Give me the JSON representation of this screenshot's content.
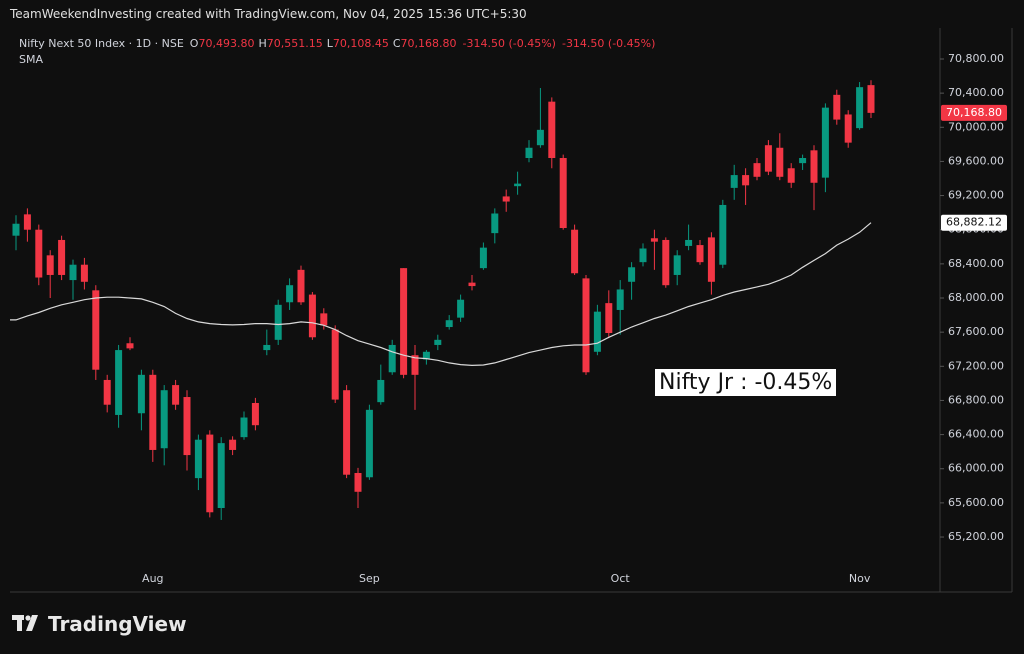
{
  "header": {
    "credit": "TeamWeekendInvesting created with TradingView.com, Nov 04, 2025 15:36 UTC+5:30"
  },
  "footer": {
    "logo": "TradingView"
  },
  "chart_data": {
    "type": "candlestick",
    "symbol": "Nifty Next 50 Index · 1D · NSE",
    "ohlc_legend": [
      {
        "key": "O",
        "value": "70,493.80"
      },
      {
        "key": "H",
        "value": "70,551.15"
      },
      {
        "key": "L",
        "value": "70,108.45"
      },
      {
        "key": "C",
        "value": "70,168.80"
      }
    ],
    "change_labels": [
      "-314.50 (-0.45%)",
      "-314.50 (-0.45%)"
    ],
    "indicator": "SMA",
    "annotation": "Nifty Jr : -0.45%",
    "up_color": "#089981",
    "down_color": "#f23645",
    "sma_color": "#d9d9d9",
    "last_price_label": {
      "value": 70168.8,
      "label": "70,168.80"
    },
    "sma_label": {
      "value": 68882.12,
      "label": "68,882.12"
    },
    "categories": [
      null,
      null,
      null,
      null,
      null,
      null,
      null,
      null,
      null,
      null,
      null,
      null,
      "Aug",
      null,
      null,
      null,
      null,
      null,
      null,
      null,
      null,
      null,
      null,
      null,
      null,
      null,
      null,
      null,
      null,
      null,
      null,
      "Sep",
      null,
      null,
      null,
      null,
      null,
      null,
      null,
      null,
      null,
      null,
      null,
      null,
      null,
      null,
      null,
      null,
      null,
      null,
      null,
      null,
      null,
      "Oct",
      null,
      null,
      null,
      null,
      null,
      null,
      null,
      null,
      null,
      null,
      null,
      null,
      null,
      null,
      null,
      null,
      null,
      null,
      null,
      null,
      "Nov",
      null
    ],
    "open": [
      68730,
      68980,
      68800,
      68500,
      68680,
      68210,
      68390,
      68090,
      67040,
      66630,
      67470,
      66650,
      67100,
      66240,
      66980,
      66840,
      65890,
      66400,
      65540,
      66340,
      66370,
      66770,
      67390,
      67510,
      67950,
      68330,
      68040,
      67820,
      67630,
      66920,
      65950,
      65900,
      66780,
      67130,
      68350,
      67330,
      67280,
      67450,
      67660,
      67770,
      68180,
      68350,
      68760,
      69190,
      69310,
      69640,
      69790,
      70300,
      69640,
      68800,
      68230,
      67370,
      67940,
      67860,
      68190,
      68420,
      68700,
      68680,
      68270,
      68610,
      68620,
      68710,
      68390,
      69290,
      69440,
      69580,
      69790,
      69760,
      69520,
      69580,
      69730,
      69410,
      70380,
      70150,
      69990,
      70493.8
    ],
    "high": [
      68970,
      69050,
      68860,
      68560,
      68730,
      68450,
      68470,
      68150,
      67100,
      67450,
      67540,
      67160,
      67160,
      66980,
      67040,
      66920,
      66400,
      66450,
      66370,
      66380,
      66670,
      66830,
      67630,
      67980,
      68230,
      68380,
      68070,
      67880,
      67680,
      66980,
      66010,
      66750,
      67220,
      67510,
      68350,
      67450,
      67390,
      67570,
      67800,
      68040,
      68270,
      68650,
      69050,
      69270,
      69480,
      69850,
      70460,
      70350,
      69680,
      68860,
      68270,
      67920,
      68090,
      68210,
      68420,
      68640,
      68800,
      68710,
      68560,
      68860,
      68680,
      68770,
      69150,
      69560,
      69520,
      69640,
      69850,
      69930,
      69580,
      69680,
      69790,
      70280,
      70440,
      70200,
      70530,
      70551.15
    ],
    "low": [
      68560,
      68660,
      68150,
      68000,
      68210,
      67980,
      68100,
      67040,
      66660,
      66480,
      67390,
      66450,
      66080,
      66040,
      66690,
      65980,
      65750,
      65430,
      65400,
      66160,
      66340,
      66450,
      67330,
      67450,
      67860,
      67920,
      67510,
      67630,
      66770,
      65890,
      65540,
      65870,
      66750,
      67100,
      67060,
      66690,
      67220,
      67390,
      67630,
      67720,
      68090,
      68330,
      68640,
      69010,
      69210,
      69590,
      69760,
      69520,
      68800,
      68270,
      67100,
      67330,
      67530,
      67570,
      67980,
      68370,
      68330,
      68120,
      68150,
      68560,
      68390,
      68040,
      68350,
      69150,
      69090,
      69380,
      69440,
      69380,
      69290,
      69500,
      69030,
      69240,
      70030,
      69760,
      69970,
      70108.45
    ],
    "close": [
      68870,
      68800,
      68240,
      68270,
      68270,
      68390,
      68190,
      67160,
      66750,
      67390,
      67410,
      67100,
      66220,
      66920,
      66750,
      66160,
      66340,
      65490,
      66300,
      66220,
      66600,
      66510,
      67450,
      67920,
      68150,
      67950,
      67540,
      67680,
      66810,
      65930,
      65730,
      66690,
      67040,
      67450,
      67100,
      67100,
      67370,
      67510,
      67740,
      67980,
      68140,
      68590,
      68990,
      69130,
      69340,
      69760,
      69970,
      69640,
      68820,
      68290,
      67130,
      67840,
      67590,
      68100,
      68360,
      68580,
      68660,
      68150,
      68500,
      68680,
      68420,
      68190,
      69090,
      69440,
      69320,
      69420,
      69480,
      69420,
      69350,
      69640,
      69350,
      70230,
      70090,
      69820,
      70470,
      70168.8
    ],
    "sma": [
      67743,
      67790,
      67830,
      67880,
      67920,
      67950,
      67980,
      68000,
      68010,
      68010,
      68000,
      67990,
      67950,
      67900,
      67820,
      67760,
      67720,
      67700,
      67690,
      67685,
      67690,
      67700,
      67700,
      67690,
      67700,
      67720,
      67710,
      67680,
      67630,
      67560,
      67500,
      67460,
      67420,
      67370,
      67330,
      67300,
      67290,
      67270,
      67240,
      67220,
      67210,
      67215,
      67240,
      67280,
      67320,
      67360,
      67390,
      67420,
      67440,
      67450,
      67450,
      67470,
      67540,
      67600,
      67660,
      67710,
      67760,
      67800,
      67850,
      67900,
      67940,
      67980,
      68030,
      68070,
      68100,
      68130,
      68160,
      68210,
      68270,
      68360,
      68440,
      68520,
      68620,
      68690,
      68770,
      68882.12
    ],
    "ylim": [
      64556,
      71163
    ],
    "yticks": [
      {
        "value": 65200,
        "label": "65,200.00"
      },
      {
        "value": 65600,
        "label": "65,600.00"
      },
      {
        "value": 66000,
        "label": "66,000.00"
      },
      {
        "value": 66400,
        "label": "66,400.00"
      },
      {
        "value": 66800,
        "label": "66,800.00"
      },
      {
        "value": 67200,
        "label": "67,200.00"
      },
      {
        "value": 67600,
        "label": "67,600.00"
      },
      {
        "value": 68000,
        "label": "68,000.00"
      },
      {
        "value": 68400,
        "label": "68,400.00"
      },
      {
        "value": 68800,
        "label": "68,800.00"
      },
      {
        "value": 69200,
        "label": "69,200.00"
      },
      {
        "value": 69600,
        "label": "69,600.00"
      },
      {
        "value": 70000,
        "label": "70,000.00"
      },
      {
        "value": 70400,
        "label": "70,400.00"
      },
      {
        "value": 70800,
        "label": "70,800.00"
      }
    ]
  }
}
